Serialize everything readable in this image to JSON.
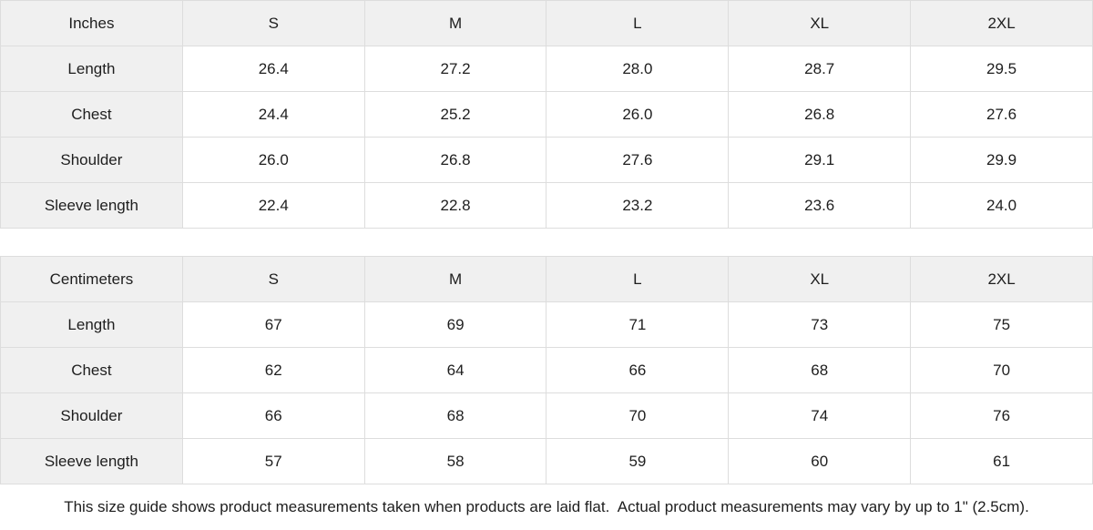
{
  "tables": [
    {
      "unit_label": "Inches",
      "sizes": [
        "S",
        "M",
        "L",
        "XL",
        "2XL"
      ],
      "rows": [
        {
          "label": "Length",
          "values": [
            "26.4",
            "27.2",
            "28.0",
            "28.7",
            "29.5"
          ]
        },
        {
          "label": "Chest",
          "values": [
            "24.4",
            "25.2",
            "26.0",
            "26.8",
            "27.6"
          ]
        },
        {
          "label": "Shoulder",
          "values": [
            "26.0",
            "26.8",
            "27.6",
            "29.1",
            "29.9"
          ]
        },
        {
          "label": "Sleeve length",
          "values": [
            "22.4",
            "22.8",
            "23.2",
            "23.6",
            "24.0"
          ]
        }
      ]
    },
    {
      "unit_label": "Centimeters",
      "sizes": [
        "S",
        "M",
        "L",
        "XL",
        "2XL"
      ],
      "rows": [
        {
          "label": "Length",
          "values": [
            "67",
            "69",
            "71",
            "73",
            "75"
          ]
        },
        {
          "label": "Chest",
          "values": [
            "62",
            "64",
            "66",
            "68",
            "70"
          ]
        },
        {
          "label": "Shoulder",
          "values": [
            "66",
            "68",
            "70",
            "74",
            "76"
          ]
        },
        {
          "label": "Sleeve length",
          "values": [
            "57",
            "58",
            "59",
            "60",
            "61"
          ]
        }
      ]
    }
  ],
  "footnote": "This size guide shows product measurements taken when products are laid flat.  Actual product measurements may vary by up to 1\" (2.5cm).",
  "colors": {
    "header_bg": "#f0f0f0",
    "cell_bg": "#ffffff",
    "border": "#dddddd",
    "text": "#1e1e1e"
  }
}
